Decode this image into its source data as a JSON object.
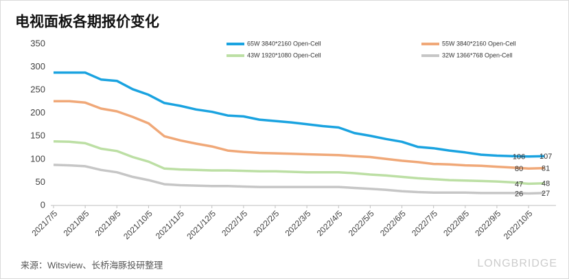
{
  "chart_data": {
    "type": "line",
    "title": "电视面板各期报价变化",
    "source": "来源：Witsview、长桥海豚投研整理",
    "logo": "LONGBRIDGE",
    "categories": [
      "2021/7/5",
      null,
      "2021/8/5",
      null,
      "2021/9/5",
      null,
      "2021/10/5",
      null,
      "2021/11/5",
      null,
      "2021/12/5",
      null,
      "2022/1/5",
      null,
      "2022/2/5",
      null,
      "2022/3/5",
      null,
      "2022/4/5",
      null,
      "2022/5/5",
      null,
      "2022/6/5",
      null,
      "2022/7/5",
      null,
      "2022/8/5",
      null,
      "2022/9/5",
      null,
      "2022/10/5",
      null
    ],
    "series": [
      {
        "name": "65W 3840*2160 Open-Cell",
        "color": "#1aa3e0",
        "values": [
          288,
          288,
          288,
          273,
          270,
          252,
          240,
          222,
          216,
          208,
          203,
          195,
          193,
          186,
          183,
          180,
          176,
          172,
          169,
          157,
          151,
          144,
          138,
          127,
          124,
          119,
          115,
          110,
          108,
          107,
          106,
          107
        ]
      },
      {
        "name": "55W 3840*2160 Open-Cell",
        "color": "#f0a878",
        "values": [
          226,
          226,
          223,
          210,
          204,
          192,
          178,
          150,
          141,
          134,
          128,
          119,
          116,
          114,
          113,
          112,
          111,
          110,
          109,
          107,
          105,
          101,
          97,
          94,
          90,
          89,
          87,
          86,
          84,
          82,
          80,
          81
        ]
      },
      {
        "name": "43W 1920*1080 Open-Cell",
        "color": "#bcdfa4",
        "values": [
          139,
          138,
          135,
          123,
          118,
          105,
          95,
          80,
          78,
          77,
          76,
          76,
          75,
          74,
          74,
          73,
          72,
          72,
          72,
          70,
          67,
          65,
          62,
          59,
          57,
          55,
          54,
          53,
          52,
          50,
          47,
          48
        ]
      },
      {
        "name": "32W 1366*768 Open-Cell",
        "color": "#c6c6c6",
        "values": [
          88,
          87,
          85,
          77,
          72,
          62,
          55,
          46,
          44,
          43,
          42,
          42,
          41,
          40,
          40,
          40,
          40,
          40,
          40,
          38,
          36,
          34,
          31,
          29,
          28,
          28,
          28,
          27,
          27,
          27,
          26,
          27
        ]
      }
    ],
    "ylim": [
      0,
      350
    ],
    "yticks": [
      0,
      50,
      100,
      150,
      200,
      250,
      300,
      350
    ],
    "grid": false
  }
}
